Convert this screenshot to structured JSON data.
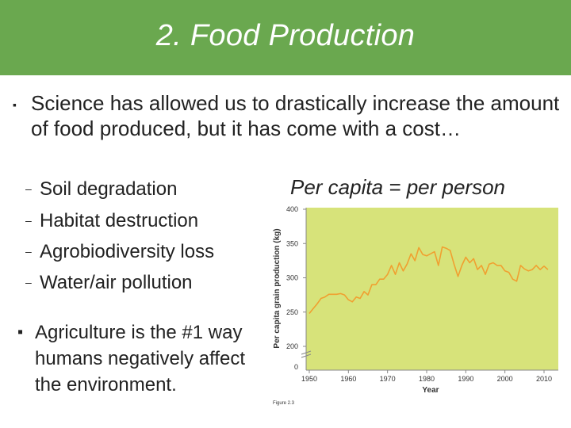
{
  "title": "2. Food Production",
  "bullet1": "Science has allowed us to drastically increase the amount of food produced, but it has come with a cost…",
  "sub_bullets": [
    "Soil degradation",
    "Habitat destruction",
    "Agrobiodiversity loss",
    "Water/air pollution"
  ],
  "bullet2": "Agriculture is the #1 way humans negatively affect the environment.",
  "per_capita_note": "Per capita = per person",
  "figure_label": "Figure 2.3",
  "colors": {
    "title_bar": "#6aa84f",
    "plot_bg": "#d7e37a",
    "line": "#f0a030"
  },
  "chart_data": {
    "type": "line",
    "title": "",
    "xlabel": "Year",
    "ylabel": "Per capita grain production (kg)",
    "xlim": [
      1950,
      2012
    ],
    "ylim": [
      200,
      400
    ],
    "xticks": [
      "1950",
      "1960",
      "1970",
      "1980",
      "1990",
      "2000",
      "2010"
    ],
    "yticks": [
      "400",
      "350",
      "300",
      "250",
      "200"
    ],
    "y_zero_label": "0",
    "axis_break": true,
    "grid": false,
    "x": [
      1950,
      1951,
      1952,
      1953,
      1954,
      1955,
      1956,
      1957,
      1958,
      1959,
      1960,
      1961,
      1962,
      1963,
      1964,
      1965,
      1966,
      1967,
      1968,
      1969,
      1970,
      1971,
      1972,
      1973,
      1974,
      1975,
      1976,
      1977,
      1978,
      1979,
      1980,
      1981,
      1982,
      1983,
      1984,
      1985,
      1986,
      1987,
      1988,
      1989,
      1990,
      1991,
      1992,
      1993,
      1994,
      1995,
      1996,
      1997,
      1998,
      1999,
      2000,
      2001,
      2002,
      2003,
      2004,
      2005,
      2006,
      2007,
      2008,
      2009,
      2010,
      2011
    ],
    "values": [
      248,
      255,
      262,
      270,
      272,
      276,
      276,
      276,
      277,
      275,
      268,
      265,
      272,
      270,
      280,
      275,
      290,
      290,
      298,
      298,
      305,
      318,
      305,
      322,
      310,
      320,
      335,
      325,
      344,
      334,
      332,
      335,
      338,
      318,
      345,
      343,
      340,
      320,
      302,
      318,
      330,
      322,
      328,
      312,
      318,
      305,
      320,
      322,
      318,
      318,
      310,
      308,
      298,
      295,
      318,
      313,
      310,
      312,
      318,
      312,
      317,
      312
    ]
  }
}
